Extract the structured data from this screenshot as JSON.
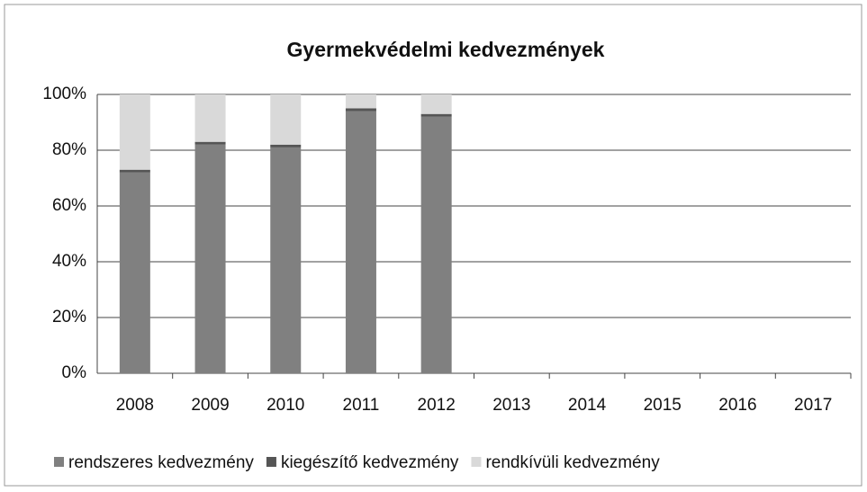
{
  "chart_data": {
    "type": "stacked_bar",
    "title": "Gyermekvédelmi kedvezmények",
    "categories": [
      "2008",
      "2009",
      "2010",
      "2011",
      "2012",
      "2013",
      "2014",
      "2015",
      "2016",
      "2017"
    ],
    "series": [
      {
        "name": "rendszeres kedvezmény",
        "color": "#808080",
        "values": [
          72,
          82,
          81,
          94,
          92,
          null,
          null,
          null,
          null,
          null
        ]
      },
      {
        "name": "kiegészítő kedvezmény",
        "color": "#555555",
        "values": [
          1,
          1,
          1,
          1,
          1,
          null,
          null,
          null,
          null,
          null
        ]
      },
      {
        "name": "rendkívüli kedvezmény",
        "color": "#d9d9d9",
        "values": [
          27,
          17,
          18,
          5,
          7,
          null,
          null,
          null,
          null,
          null
        ]
      }
    ],
    "ylim": [
      0,
      100
    ],
    "yticks": [
      {
        "value": 0,
        "label": "0%"
      },
      {
        "value": 20,
        "label": "20%"
      },
      {
        "value": 40,
        "label": "40%"
      },
      {
        "value": 60,
        "label": "60%"
      },
      {
        "value": 80,
        "label": "80%"
      },
      {
        "value": 100,
        "label": "100%"
      }
    ],
    "grid": true,
    "legend": "bottom"
  }
}
